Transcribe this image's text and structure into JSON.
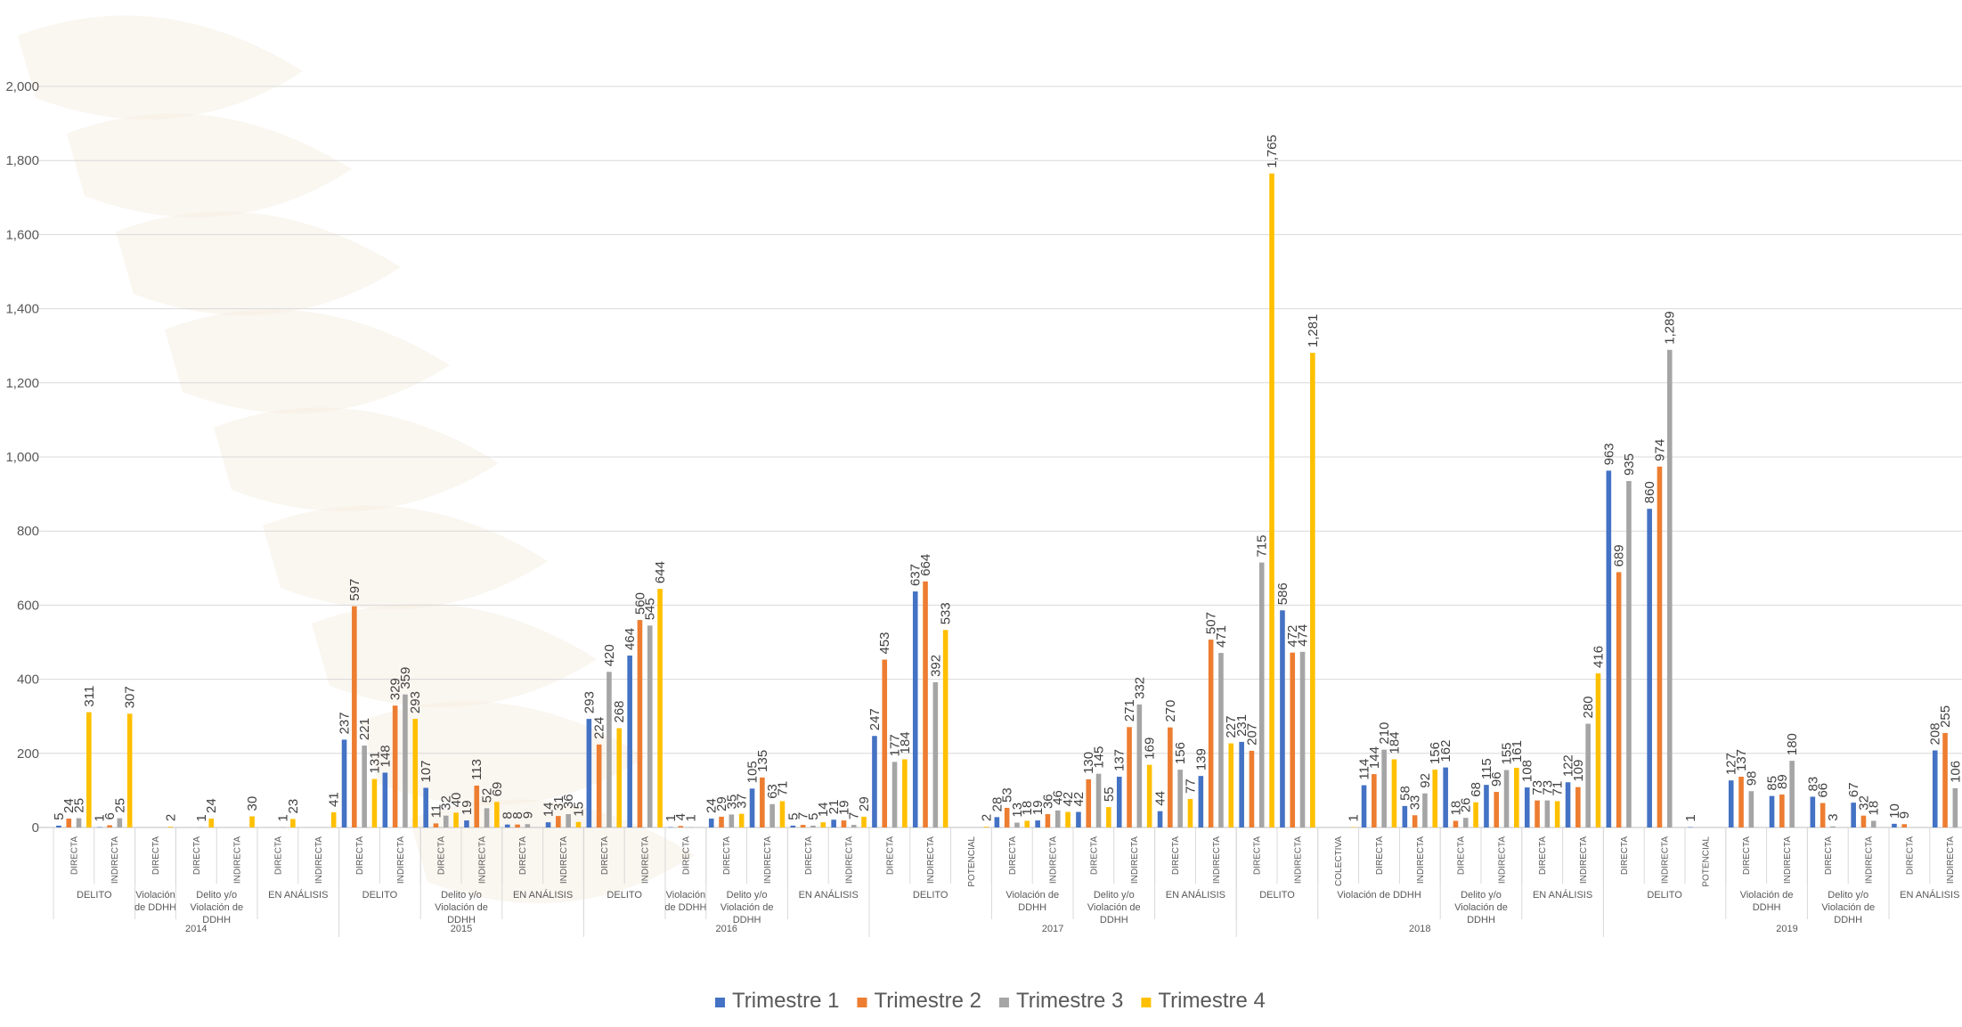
{
  "chart_data": {
    "type": "bar",
    "title": "",
    "xlabel": "",
    "ylabel": "",
    "ylim": [
      0,
      2000
    ],
    "yticks": [
      "0",
      "200",
      "400",
      "600",
      "800",
      "1,000",
      "1,200",
      "1,400",
      "1,600",
      "1,800",
      "2,000"
    ],
    "ytick_values": [
      0,
      200,
      400,
      600,
      800,
      1000,
      1200,
      1400,
      1600,
      1800,
      2000
    ],
    "grid": true,
    "legend_position": "bottom",
    "colors": [
      "#4472C4",
      "#ED7D31",
      "#A5A5A5",
      "#FFC000"
    ],
    "series_names": [
      "Trimestre 1",
      "Trimestre 2",
      "Trimestre 3",
      "Trimestre 4"
    ],
    "years": [
      {
        "label": "2014",
        "groups": [
          {
            "label": "DELITO",
            "cats": [
              {
                "label": "DIRECTA",
                "values": [
                  5,
                  24,
                  25,
                  311
                ]
              },
              {
                "label": "INDIRECTA",
                "values": [
                  1,
                  6,
                  25,
                  307
                ]
              }
            ]
          },
          {
            "label": "Violación de DDHH",
            "cats": [
              {
                "label": "DIRECTA",
                "values": [
                  null,
                  null,
                  null,
                  2
                ]
              }
            ]
          },
          {
            "label": "Delito y/o Violación de DDHH",
            "cats": [
              {
                "label": "DIRECTA",
                "values": [
                  null,
                  null,
                  1,
                  24
                ]
              },
              {
                "label": "INDIRECTA",
                "values": [
                  null,
                  null,
                  null,
                  30
                ]
              }
            ]
          },
          {
            "label": "EN ANÁLISIS",
            "cats": [
              {
                "label": "DIRECTA",
                "values": [
                  null,
                  null,
                  1,
                  23
                ]
              },
              {
                "label": "INDIRECTA",
                "values": [
                  null,
                  null,
                  null,
                  41
                ]
              }
            ]
          }
        ]
      },
      {
        "label": "2015",
        "groups": [
          {
            "label": "DELITO",
            "cats": [
              {
                "label": "DIRECTA",
                "values": [
                  237,
                  597,
                  221,
                  131
                ]
              },
              {
                "label": "INDIRECTA",
                "values": [
                  148,
                  329,
                  359,
                  293
                ]
              }
            ]
          },
          {
            "label": "Delito y/o Violación de DDHH",
            "cats": [
              {
                "label": "DIRECTA",
                "values": [
                  107,
                  11,
                  32,
                  40
                ]
              },
              {
                "label": "INDIRECTA",
                "values": [
                  19,
                  113,
                  52,
                  69
                ]
              }
            ]
          },
          {
            "label": "EN ANÁLISIS",
            "cats": [
              {
                "label": "DIRECTA",
                "values": [
                  8,
                  8,
                  9,
                  null
                ]
              },
              {
                "label": "INDIRECTA",
                "values": [
                  14,
                  31,
                  36,
                  15
                ]
              }
            ]
          }
        ]
      },
      {
        "label": "2016",
        "groups": [
          {
            "label": "DELITO",
            "cats": [
              {
                "label": "DIRECTA",
                "values": [
                  293,
                  224,
                  420,
                  268
                ]
              },
              {
                "label": "INDIRECTA",
                "values": [
                  464,
                  560,
                  545,
                  644
                ]
              }
            ]
          },
          {
            "label": "Violación de DDHH",
            "cats": [
              {
                "label": "DIRECTA",
                "values": [
                  1,
                  4,
                  1,
                  null
                ]
              }
            ]
          },
          {
            "label": "Delito y/o Violación de DDHH",
            "cats": [
              {
                "label": "DIRECTA",
                "values": [
                  24,
                  29,
                  35,
                  37
                ]
              },
              {
                "label": "INDIRECTA",
                "values": [
                  105,
                  135,
                  63,
                  71
                ]
              }
            ]
          },
          {
            "label": "EN ANÁLISIS",
            "cats": [
              {
                "label": "DIRECTA",
                "values": [
                  5,
                  7,
                  5,
                  14
                ]
              },
              {
                "label": "INDIRECTA",
                "values": [
                  21,
                  19,
                  7,
                  29
                ]
              }
            ]
          }
        ]
      },
      {
        "label": "2017",
        "groups": [
          {
            "label": "DELITO",
            "cats": [
              {
                "label": "DIRECTA",
                "values": [
                  247,
                  453,
                  177,
                  184
                ]
              },
              {
                "label": "INDIRECTA",
                "values": [
                  637,
                  664,
                  392,
                  533
                ]
              },
              {
                "label": "POTENCIAL",
                "values": [
                  null,
                  null,
                  null,
                  2
                ]
              }
            ]
          },
          {
            "label": "Violación de DDHH",
            "cats": [
              {
                "label": "DIRECTA",
                "values": [
                  28,
                  53,
                  13,
                  18
                ]
              },
              {
                "label": "INDIRECTA",
                "values": [
                  19,
                  36,
                  46,
                  42
                ]
              }
            ]
          },
          {
            "label": "Delito y/o Violación de DDHH",
            "cats": [
              {
                "label": "DIRECTA",
                "values": [
                  42,
                  130,
                  145,
                  55
                ]
              },
              {
                "label": "INDIRECTA",
                "values": [
                  137,
                  271,
                  332,
                  169
                ]
              }
            ]
          },
          {
            "label": "EN ANÁLISIS",
            "cats": [
              {
                "label": "DIRECTA",
                "values": [
                  44,
                  270,
                  156,
                  77
                ]
              },
              {
                "label": "INDIRECTA",
                "values": [
                  139,
                  507,
                  471,
                  227
                ]
              }
            ]
          }
        ]
      },
      {
        "label": "2018",
        "groups": [
          {
            "label": "DELITO",
            "cats": [
              {
                "label": "DIRECTA",
                "values": [
                  231,
                  207,
                  715,
                  1765
                ]
              },
              {
                "label": "INDIRECTA",
                "values": [
                  586,
                  472,
                  474,
                  1281
                ]
              }
            ]
          },
          {
            "label": "Violación de DDHH",
            "cats": [
              {
                "label": "COLECTIVA",
                "values": [
                  null,
                  null,
                  null,
                  1
                ]
              },
              {
                "label": "DIRECTA",
                "values": [
                  114,
                  144,
                  210,
                  184
                ]
              },
              {
                "label": "INDIRECTA",
                "values": [
                  58,
                  33,
                  92,
                  156
                ]
              }
            ]
          },
          {
            "label": "Delito y/o Violación de DDHH",
            "cats": [
              {
                "label": "DIRECTA",
                "values": [
                  162,
                  18,
                  26,
                  68
                ]
              },
              {
                "label": "INDIRECTA",
                "values": [
                  115,
                  96,
                  155,
                  161
                ]
              }
            ]
          },
          {
            "label": "EN ANÁLISIS",
            "cats": [
              {
                "label": "DIRECTA",
                "values": [
                  108,
                  73,
                  73,
                  71
                ]
              },
              {
                "label": "INDIRECTA",
                "values": [
                  122,
                  109,
                  280,
                  416
                ]
              }
            ]
          }
        ]
      },
      {
        "label": "2019",
        "groups": [
          {
            "label": "DELITO",
            "cats": [
              {
                "label": "DIRECTA",
                "values": [
                  963,
                  689,
                  935,
                  null
                ]
              },
              {
                "label": "INDIRECTA",
                "values": [
                  860,
                  974,
                  1289,
                  null
                ]
              },
              {
                "label": "POTENCIAL",
                "values": [
                  1,
                  null,
                  null,
                  null
                ]
              }
            ]
          },
          {
            "label": "Violación de DDHH",
            "cats": [
              {
                "label": "DIRECTA",
                "values": [
                  127,
                  137,
                  98,
                  null
                ]
              },
              {
                "label": "INDIRECTA",
                "values": [
                  85,
                  89,
                  180,
                  null
                ]
              }
            ]
          },
          {
            "label": "Delito y/o Violación de DDHH",
            "cats": [
              {
                "label": "DIRECTA",
                "values": [
                  83,
                  66,
                  3,
                  null
                ]
              },
              {
                "label": "INDIRECTA",
                "values": [
                  67,
                  32,
                  18,
                  null
                ]
              }
            ]
          },
          {
            "label": "EN ANÁLISIS",
            "cats": [
              {
                "label": "DIRECTA",
                "values": [
                  10,
                  9,
                  null,
                  null
                ]
              },
              {
                "label": "INDIRECTA",
                "values": [
                  208,
                  255,
                  106,
                  null
                ]
              }
            ]
          }
        ]
      }
    ]
  }
}
